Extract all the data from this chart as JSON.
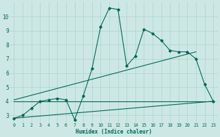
{
  "xlabel": "Humidex (Indice chaleur)",
  "bg_color": "#cde8e4",
  "grid_color": "#b0d5d0",
  "line_color": "#006655",
  "xlim": [
    -0.5,
    23.5
  ],
  "ylim": [
    2.5,
    11.0
  ],
  "xticks": [
    0,
    1,
    2,
    3,
    4,
    5,
    6,
    7,
    8,
    9,
    10,
    11,
    12,
    13,
    14,
    15,
    16,
    17,
    18,
    19,
    20,
    21,
    22,
    23
  ],
  "yticks": [
    3,
    4,
    5,
    6,
    7,
    8,
    9,
    10
  ],
  "series1_x": [
    0,
    1,
    2,
    3,
    4,
    5,
    6,
    7,
    8,
    9,
    10,
    11,
    12,
    13,
    14,
    15,
    16,
    17,
    18,
    19,
    20,
    21,
    22,
    23
  ],
  "series1_y": [
    2.8,
    3.0,
    3.5,
    4.0,
    4.1,
    4.2,
    4.1,
    2.7,
    4.4,
    6.3,
    9.3,
    10.6,
    10.5,
    6.5,
    7.2,
    9.1,
    8.8,
    8.3,
    7.6,
    7.5,
    7.5,
    7.0,
    5.2,
    4.0
  ],
  "series2_x": [
    0,
    23
  ],
  "series2_y": [
    2.8,
    4.0
  ],
  "series3_x": [
    0,
    21
  ],
  "series3_y": [
    4.1,
    7.5
  ],
  "series4_x": [
    0,
    23
  ],
  "series4_y": [
    4.0,
    4.0
  ]
}
